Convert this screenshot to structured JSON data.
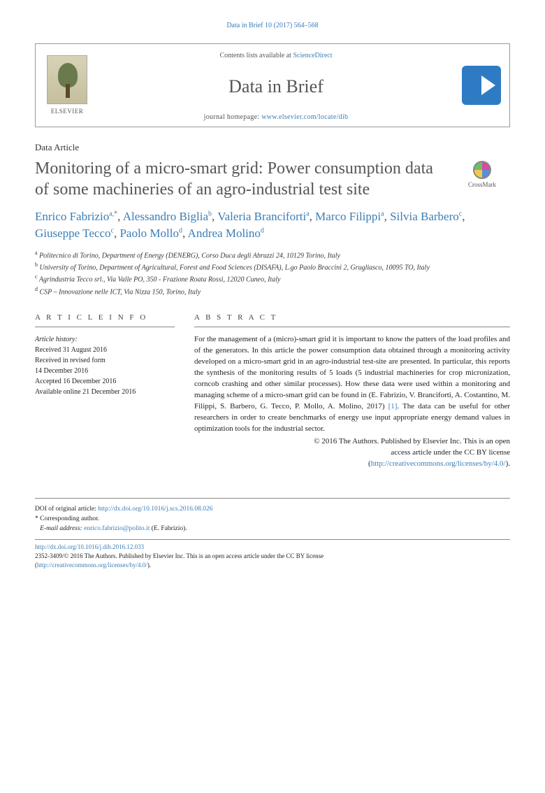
{
  "running_head": "Data in Brief 10 (2017) 564–568",
  "banner": {
    "publisher_word": "ELSEVIER",
    "contents_prefix": "Contents lists available at ",
    "contents_link": "ScienceDirect",
    "journal_name": "Data in Brief",
    "homepage_prefix": "journal homepage: ",
    "homepage_url": "www.elsevier.com/locate/dib"
  },
  "article_type": "Data Article",
  "title": "Monitoring of a micro-smart grid: Power consumption data of some machineries of an agro-industrial test site",
  "crossmark_label": "CrossMark",
  "authors_html": "Enrico Fabrizio <sup>a,*</sup>, Alessandro Biglia <sup>b</sup>, Valeria Branciforti <sup>a</sup>, Marco Filippi <sup>a</sup>, Silvia Barbero <sup>c</sup>, Giuseppe Tecco <sup>c</sup>, Paolo Mollo <sup>d</sup>, Andrea Molino <sup>d</sup>",
  "affiliations": [
    "a Politecnico di Torino, Department of Energy (DENERG), Corso Duca degli Abruzzi 24, 10129 Torino, Italy",
    "b University of Torino, Department of Agricultural, Forest and Food Sciences (DISAFA), L.go Paolo Braccini 2, Grugliasco, 10095 TO, Italy",
    "c Agrindustria Tecco srl., Via Valle PO, 350 - Frazione Roata Rossi, 12020 Cuneo, Italy",
    "d CSP – Innovazione nelle ICT, Via Nizza 150, Torino, Italy"
  ],
  "info_head": "A R T I C L E  I N F O",
  "abstract_head": "A B S T R A C T",
  "history": {
    "label": "Article history:",
    "lines": [
      "Received 31 August 2016",
      "Received in revised form",
      "14 December 2016",
      "Accepted 16 December 2016",
      "Available online 21 December 2016"
    ]
  },
  "abstract_text": "For the management of a (micro)-smart grid it is important to know the patters of the load profiles and of the generators. In this article the power consumption data obtained through a monitoring activity developed on a micro-smart grid in an agro-industrial test-site are presented. In particular, this reports the synthesis of the monitoring results of 5 loads (5 industrial machineries for crop micronization, corncob crashing and other similar processes). How these data were used within a monitoring and managing scheme of a micro-smart grid can be found in (E. Fabrizio, V. Branciforti, A. Costantino, M. Filippi, S. Barbero, G. Tecco, P. Mollo, A. Molino, 2017) ",
  "abstract_ref": "[1]",
  "abstract_tail": ". The data can be useful for other researchers in order to create benchmarks of energy use input appropriate energy demand values in optimization tools for the industrial sector.",
  "copyright": {
    "line1": "© 2016 The Authors. Published by Elsevier Inc. This is an open",
    "line2": "access article under the CC BY license",
    "license_url": "http://creativecommons.org/licenses/by/4.0/"
  },
  "footnotes": {
    "doi_label": "DOI of original article: ",
    "doi_url": "http://dx.doi.org/10.1016/j.scs.2016.08.026",
    "corr_label": "* Corresponding author.",
    "email_label": "E-mail address: ",
    "email": "enrico.fabrizio@polito.it",
    "email_name": " (E. Fabrizio)."
  },
  "bottom": {
    "article_doi": "http://dx.doi.org/10.1016/j.dib.2016.12.033",
    "issn_line": "2352-3409/© 2016 The Authors. Published by Elsevier Inc. This is an open access article under the CC BY license",
    "license_url": "http://creativecommons.org/licenses/by/4.0/"
  },
  "colors": {
    "link": "#3a7db5",
    "text_gray": "#555555",
    "rule": "#888888",
    "brief_logo": "#2e7bc4"
  }
}
